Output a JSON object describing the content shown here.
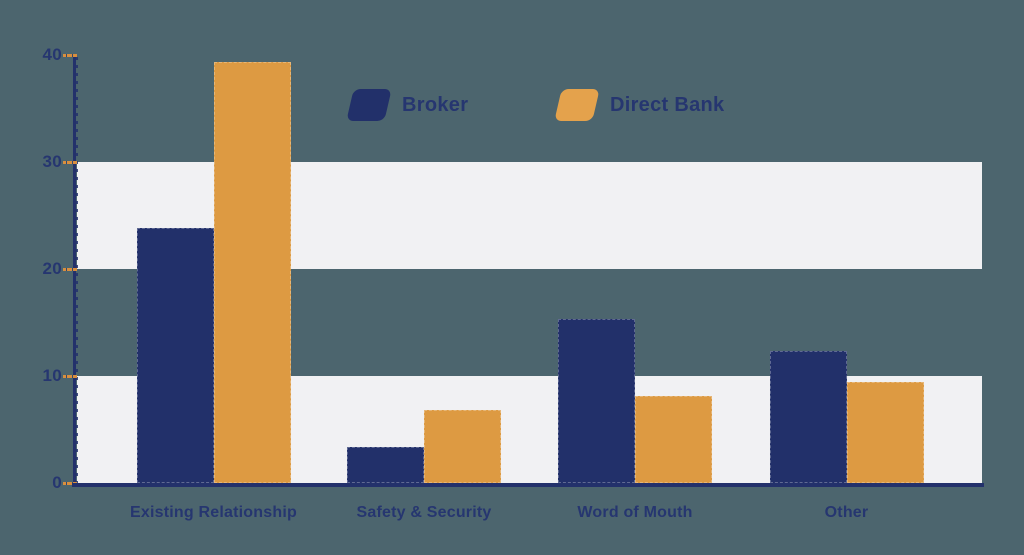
{
  "chart": {
    "background_color": "#4C656E",
    "band_color": "#F1F1F3",
    "axis_color": "#23316B",
    "tick_color": "#D98F3E",
    "label_color": "#263670"
  },
  "legend": {
    "items": [
      {
        "label": "Broker",
        "color": "#22306A"
      },
      {
        "label": "Direct Bank",
        "color": "#E4A24C"
      }
    ]
  },
  "chart_data": {
    "type": "bar",
    "title": "",
    "categories": [
      "Existing Relationship",
      "Safety & Security",
      "Word of Mouth",
      "Other"
    ],
    "series": [
      {
        "name": "Broker",
        "color": "#22306A",
        "values": [
          23.8,
          3.4,
          15.3,
          12.3
        ]
      },
      {
        "name": "Direct Bank",
        "color": "#DD9A42",
        "values": [
          39.3,
          6.8,
          8.1,
          9.4
        ]
      }
    ],
    "xlabel": "",
    "ylabel": "",
    "ylim": [
      0,
      40
    ],
    "yticks": [
      0,
      10,
      20,
      30,
      40
    ],
    "band_ranges": [
      [
        20,
        30
      ],
      [
        0,
        10
      ]
    ],
    "grid": "off",
    "legend_position": "top-center"
  }
}
